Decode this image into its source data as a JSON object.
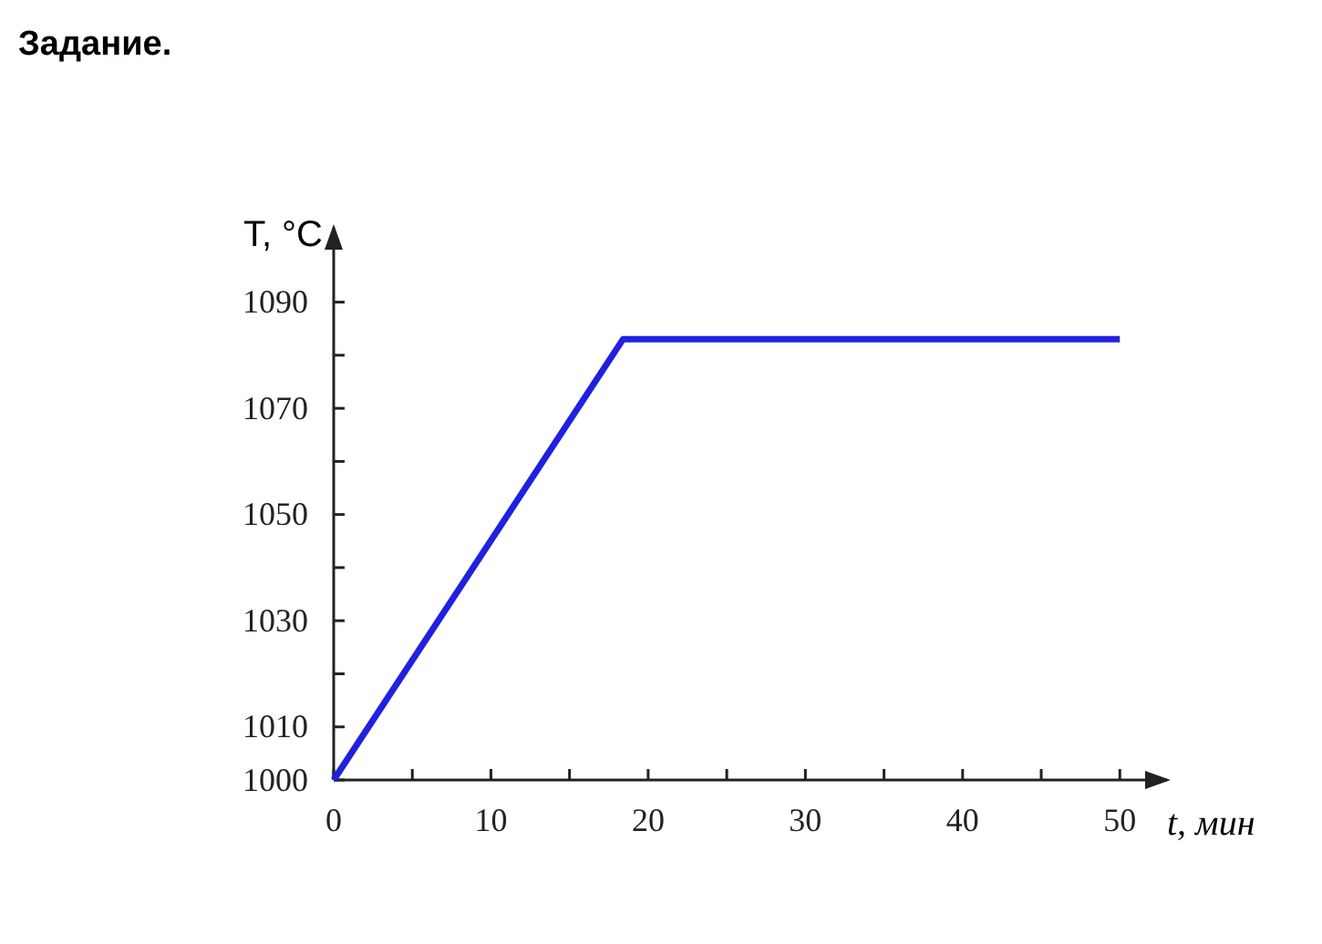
{
  "chart_data": {
    "type": "line",
    "title": "Задание.",
    "xlabel": "t, мин",
    "ylabel": "T, °C",
    "x": [
      0,
      18.4,
      50
    ],
    "series": [
      {
        "color": "#2020e0",
        "values": [
          1000,
          1083,
          1083
        ]
      }
    ],
    "xlim": [
      0,
      53
    ],
    "ylim": [
      1000,
      1104
    ],
    "xticks": [
      0,
      {
        "value": 5,
        "label": null
      },
      10,
      {
        "value": 15,
        "label": null
      },
      20,
      {
        "value": 25,
        "label": null
      },
      30,
      {
        "value": 35,
        "label": null
      },
      40,
      {
        "value": 45,
        "label": null
      },
      50
    ],
    "yticks": [
      1000,
      1010,
      {
        "value": 1020,
        "label": null
      },
      1030,
      {
        "value": 1040,
        "label": null
      },
      1050,
      {
        "value": 1060,
        "label": null
      },
      1070,
      {
        "value": 1080,
        "label": null
      },
      1090
    ],
    "grid": false,
    "marker": "none",
    "line_style": "solid"
  }
}
